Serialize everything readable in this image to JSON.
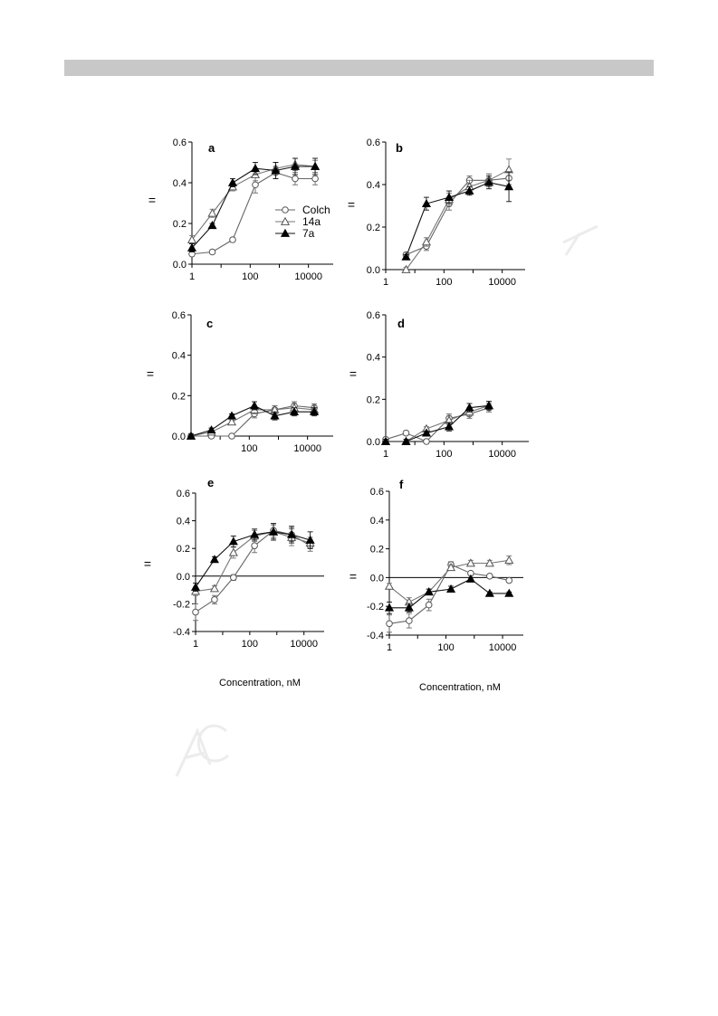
{
  "chart_data": [
    {
      "type": "line",
      "panel": "a",
      "xscale": "log",
      "ylim": [
        0,
        0.6
      ],
      "xticks": [
        "1",
        "100",
        "10000"
      ],
      "yticks": [
        "0.0",
        "0.2",
        "0.4",
        "0.6"
      ],
      "ylabel": "=",
      "xlabel": "",
      "legend": {
        "position": "right",
        "entries": [
          "Colch",
          "14a",
          "7a"
        ]
      },
      "series": [
        {
          "name": "Colch",
          "marker": "circle-open",
          "x": [
            1,
            5,
            25,
            150,
            750,
            3500,
            17000
          ],
          "y": [
            0.05,
            0.06,
            0.12,
            0.39,
            0.45,
            0.42,
            0.42
          ],
          "err": [
            0.01,
            0.01,
            0.01,
            0.04,
            0.03,
            0.03,
            0.03
          ]
        },
        {
          "name": "14a",
          "marker": "triangle-open",
          "x": [
            1,
            5,
            25,
            150,
            750,
            3500,
            17000
          ],
          "y": [
            0.12,
            0.25,
            0.38,
            0.44,
            0.47,
            0.49,
            0.48
          ],
          "err": [
            0.02,
            0.02,
            0.02,
            0.03,
            0.03,
            0.03,
            0.03
          ]
        },
        {
          "name": "7a",
          "marker": "triangle-filled",
          "x": [
            1,
            5,
            25,
            150,
            750,
            3500,
            17000
          ],
          "y": [
            0.08,
            0.19,
            0.4,
            0.47,
            0.46,
            0.48,
            0.48
          ],
          "err": [
            0.02,
            0.01,
            0.02,
            0.03,
            0.04,
            0.04,
            0.04
          ]
        }
      ]
    },
    {
      "type": "line",
      "panel": "b",
      "xscale": "log",
      "ylim": [
        0,
        0.6
      ],
      "xticks": [
        "1",
        "100",
        "10000"
      ],
      "yticks": [
        "0.0",
        "0.2",
        "0.4",
        "0.6"
      ],
      "ylabel": "=",
      "xlabel": "",
      "series": [
        {
          "name": "Colch",
          "marker": "circle-open",
          "x": [
            5,
            25,
            150,
            750,
            3500,
            17000
          ],
          "y": [
            0.07,
            0.11,
            0.31,
            0.42,
            0.42,
            0.43
          ],
          "err": [
            0.01,
            0.02,
            0.03,
            0.02,
            0.03,
            0.03
          ]
        },
        {
          "name": "14a",
          "marker": "triangle-open",
          "x": [
            5,
            25,
            150,
            750,
            3500,
            17000
          ],
          "y": [
            0.0,
            0.13,
            0.33,
            0.39,
            0.42,
            0.47
          ],
          "err": [
            0.01,
            0.02,
            0.03,
            0.03,
            0.03,
            0.05
          ]
        },
        {
          "name": "7a",
          "marker": "triangle-filled",
          "x": [
            5,
            25,
            150,
            750,
            3500,
            17000
          ],
          "y": [
            0.06,
            0.31,
            0.34,
            0.37,
            0.41,
            0.39
          ],
          "err": [
            0.01,
            0.03,
            0.03,
            0.02,
            0.03,
            0.07
          ]
        }
      ]
    },
    {
      "type": "line",
      "panel": "c",
      "xscale": "log",
      "ylim": [
        0,
        0.6
      ],
      "xticks": [
        "100",
        "10000"
      ],
      "yticks": [
        "0.0",
        "0.2",
        "0.4",
        "0.6"
      ],
      "ylabel": "=",
      "xlabel": "",
      "series": [
        {
          "name": "Colch",
          "marker": "circle-open",
          "x": [
            1,
            5,
            25,
            150,
            750,
            3500,
            17000
          ],
          "y": [
            0.0,
            0.0,
            0.0,
            0.11,
            0.13,
            0.15,
            0.14
          ],
          "err": [
            0.01,
            0.01,
            0.01,
            0.02,
            0.02,
            0.02,
            0.02
          ]
        },
        {
          "name": "14a",
          "marker": "triangle-open",
          "x": [
            1,
            5,
            25,
            150,
            750,
            3500,
            17000
          ],
          "y": [
            0.0,
            0.02,
            0.07,
            0.13,
            0.13,
            0.14,
            0.13
          ],
          "err": [
            0.01,
            0.01,
            0.01,
            0.02,
            0.02,
            0.02,
            0.02
          ]
        },
        {
          "name": "7a",
          "marker": "triangle-filled",
          "x": [
            1,
            5,
            25,
            150,
            750,
            3500,
            17000
          ],
          "y": [
            0.0,
            0.03,
            0.1,
            0.15,
            0.1,
            0.12,
            0.12
          ],
          "err": [
            0.01,
            0.01,
            0.01,
            0.02,
            0.02,
            0.02,
            0.02
          ]
        }
      ]
    },
    {
      "type": "line",
      "panel": "d",
      "xscale": "log",
      "ylim": [
        0,
        0.6
      ],
      "xticks": [
        "1",
        "100",
        "10000"
      ],
      "yticks": [
        "0.0",
        "0.2",
        "0.4",
        "0.6"
      ],
      "ylabel": "=",
      "xlabel": "",
      "series": [
        {
          "name": "Colch",
          "marker": "circle-open",
          "x": [
            1,
            5,
            25,
            150,
            750,
            3500
          ],
          "y": [
            0.01,
            0.04,
            0.0,
            0.11,
            0.13,
            0.16
          ],
          "err": [
            0.01,
            0.01,
            0.01,
            0.02,
            0.02,
            0.02
          ]
        },
        {
          "name": "14a",
          "marker": "triangle-open",
          "x": [
            1,
            5,
            25,
            150,
            750,
            3500
          ],
          "y": [
            0.0,
            0.0,
            0.06,
            0.1,
            0.14,
            0.17
          ],
          "err": [
            0.01,
            0.01,
            0.01,
            0.02,
            0.02,
            0.02
          ]
        },
        {
          "name": "7a",
          "marker": "triangle-filled",
          "x": [
            1,
            5,
            25,
            150,
            750,
            3500
          ],
          "y": [
            0.0,
            0.0,
            0.04,
            0.07,
            0.16,
            0.17
          ],
          "err": [
            0.01,
            0.01,
            0.01,
            0.02,
            0.02,
            0.02
          ]
        }
      ]
    },
    {
      "type": "line",
      "panel": "e",
      "xscale": "log",
      "ylim": [
        -0.4,
        0.6
      ],
      "xticks": [
        "1",
        "100",
        "10000"
      ],
      "yticks": [
        "-0.4",
        "-0.2",
        "0.0",
        "0.2",
        "0.4",
        "0.6"
      ],
      "ylabel": "=",
      "xlabel": "Concentration, nM",
      "series": [
        {
          "name": "Colch",
          "marker": "circle-open",
          "x": [
            1,
            5,
            25,
            150,
            750,
            3500,
            17000
          ],
          "y": [
            -0.26,
            -0.17,
            -0.01,
            0.22,
            0.33,
            0.3,
            0.22
          ],
          "err": [
            0.06,
            0.03,
            0.02,
            0.05,
            0.05,
            0.05,
            0.04
          ]
        },
        {
          "name": "14a",
          "marker": "triangle-open",
          "x": [
            1,
            5,
            25,
            150,
            750,
            3500,
            17000
          ],
          "y": [
            -0.11,
            -0.09,
            0.17,
            0.29,
            0.32,
            0.28,
            0.24
          ],
          "err": [
            0.03,
            0.02,
            0.04,
            0.04,
            0.05,
            0.06,
            0.04
          ]
        },
        {
          "name": "7a",
          "marker": "triangle-filled",
          "x": [
            1,
            5,
            25,
            150,
            750,
            3500,
            17000
          ],
          "y": [
            -0.08,
            0.12,
            0.25,
            0.3,
            0.32,
            0.3,
            0.26
          ],
          "err": [
            0.03,
            0.02,
            0.04,
            0.04,
            0.06,
            0.06,
            0.06
          ]
        }
      ]
    },
    {
      "type": "line",
      "panel": "f",
      "xscale": "log",
      "ylim": [
        -0.4,
        0.6
      ],
      "xticks": [
        "1",
        "100",
        "10000"
      ],
      "yticks": [
        "-0.4",
        "-0.2",
        "0.0",
        "0.2",
        "0.4",
        "0.6"
      ],
      "ylabel": "=",
      "xlabel": "Concentration, nM",
      "series": [
        {
          "name": "Colch",
          "marker": "circle-open",
          "x": [
            1,
            5,
            25,
            150,
            750,
            3500,
            17000
          ],
          "y": [
            -0.32,
            -0.3,
            -0.19,
            0.09,
            0.03,
            0.01,
            -0.02
          ],
          "err": [
            0.06,
            0.05,
            0.04,
            0.02,
            0.01,
            0.01,
            0.01
          ]
        },
        {
          "name": "14a",
          "marker": "triangle-open",
          "x": [
            1,
            5,
            25,
            150,
            750,
            3500,
            17000
          ],
          "y": [
            -0.06,
            -0.17,
            -0.1,
            0.07,
            0.1,
            0.1,
            0.12
          ],
          "err": [
            0.02,
            0.03,
            0.02,
            0.02,
            0.02,
            0.02,
            0.03
          ]
        },
        {
          "name": "7a",
          "marker": "triangle-filled",
          "x": [
            1,
            5,
            25,
            150,
            750,
            3500,
            17000
          ],
          "y": [
            -0.21,
            -0.21,
            -0.1,
            -0.08,
            -0.01,
            -0.11,
            -0.11
          ],
          "err": [
            0.04,
            0.03,
            0.02,
            0.02,
            0.01,
            0.01,
            0.01
          ]
        }
      ]
    }
  ]
}
